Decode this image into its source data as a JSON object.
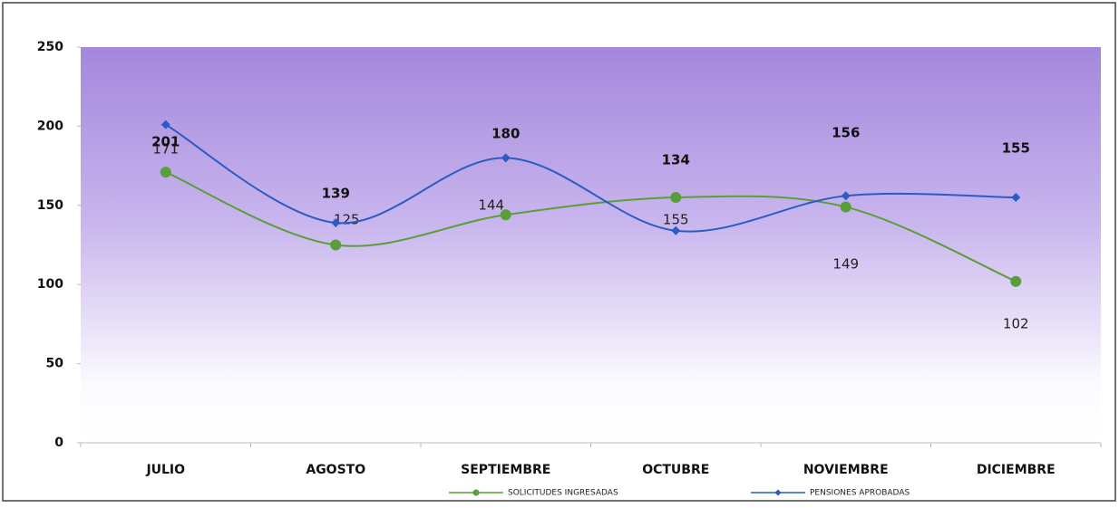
{
  "chart_data": {
    "type": "line",
    "categories": [
      "JULIO",
      "AGOSTO",
      "SEPTIEMBRE",
      "OCTUBRE",
      "NOVIEMBRE",
      "DICIEMBRE"
    ],
    "series": [
      {
        "name": "SOLICITUDES INGRESADAS",
        "color": "#5a9e3a",
        "values": [
          171,
          125,
          144,
          155,
          149,
          102
        ]
      },
      {
        "name": "PENSIONES  APROBADAS",
        "color": "#2a5cc4",
        "values": [
          201,
          139,
          180,
          134,
          156,
          155
        ]
      }
    ],
    "ylim": [
      0,
      250
    ],
    "yticks": [
      0,
      50,
      100,
      150,
      200,
      250
    ],
    "smooth": true
  }
}
